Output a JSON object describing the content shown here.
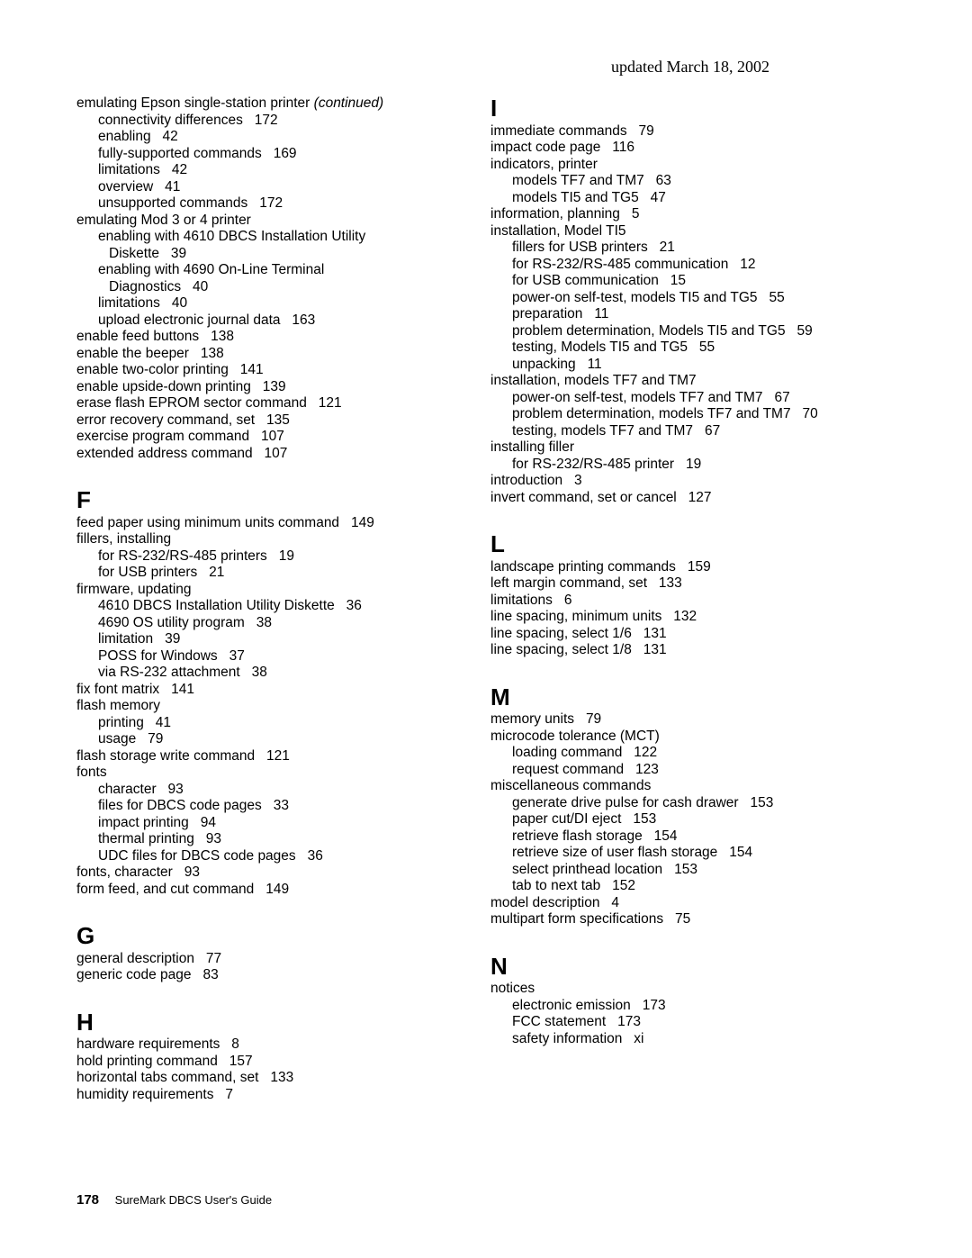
{
  "updated_text": "updated March 18, 2002",
  "footer": {
    "page_number": "178",
    "doc_title": "SureMark DBCS User's Guide"
  },
  "left_column": [
    {
      "type": "entry",
      "level": 0,
      "text": "emulating Epson single-station printer",
      "continued": true
    },
    {
      "type": "entry",
      "level": 1,
      "text": "connectivity differences",
      "page": "172"
    },
    {
      "type": "entry",
      "level": 1,
      "text": "enabling",
      "page": "42"
    },
    {
      "type": "entry",
      "level": 1,
      "text": "fully-supported commands",
      "page": "169"
    },
    {
      "type": "entry",
      "level": 1,
      "text": "limitations",
      "page": "42"
    },
    {
      "type": "entry",
      "level": 1,
      "text": "overview",
      "page": "41"
    },
    {
      "type": "entry",
      "level": 1,
      "text": "unsupported commands",
      "page": "172"
    },
    {
      "type": "entry",
      "level": 0,
      "text": "emulating Mod 3 or 4 printer"
    },
    {
      "type": "entry",
      "level": 1,
      "text": "enabling with 4610 DBCS Installation Utility"
    },
    {
      "type": "entry",
      "level": 2,
      "text": "Diskette",
      "page": "39"
    },
    {
      "type": "entry",
      "level": 1,
      "text": "enabling with 4690 On-Line Terminal"
    },
    {
      "type": "entry",
      "level": 2,
      "text": "Diagnostics",
      "page": "40"
    },
    {
      "type": "entry",
      "level": 1,
      "text": "limitations",
      "page": "40"
    },
    {
      "type": "entry",
      "level": 1,
      "text": "upload electronic journal data",
      "page": "163"
    },
    {
      "type": "entry",
      "level": 0,
      "text": "enable feed buttons",
      "page": "138"
    },
    {
      "type": "entry",
      "level": 0,
      "text": "enable the beeper",
      "page": "138"
    },
    {
      "type": "entry",
      "level": 0,
      "text": "enable two-color printing",
      "page": "141"
    },
    {
      "type": "entry",
      "level": 0,
      "text": "enable upside-down printing",
      "page": "139"
    },
    {
      "type": "entry",
      "level": 0,
      "text": "erase flash EPROM sector command",
      "page": "121"
    },
    {
      "type": "entry",
      "level": 0,
      "text": "error recovery command, set",
      "page": "135"
    },
    {
      "type": "entry",
      "level": 0,
      "text": "exercise program command",
      "page": "107"
    },
    {
      "type": "entry",
      "level": 0,
      "text": "extended address command",
      "page": "107"
    },
    {
      "type": "letter",
      "text": "F"
    },
    {
      "type": "entry",
      "level": 0,
      "text": "feed paper using minimum units command",
      "page": "149"
    },
    {
      "type": "entry",
      "level": 0,
      "text": "fillers, installing"
    },
    {
      "type": "entry",
      "level": 1,
      "text": "for RS-232/RS-485 printers",
      "page": "19"
    },
    {
      "type": "entry",
      "level": 1,
      "text": "for USB printers",
      "page": "21"
    },
    {
      "type": "entry",
      "level": 0,
      "text": "firmware, updating"
    },
    {
      "type": "entry",
      "level": 1,
      "text": "4610 DBCS Installation Utility Diskette",
      "page": "36"
    },
    {
      "type": "entry",
      "level": 1,
      "text": "4690 OS utility program",
      "page": "38"
    },
    {
      "type": "entry",
      "level": 1,
      "text": "limitation",
      "page": "39"
    },
    {
      "type": "entry",
      "level": 1,
      "text": "POSS for Windows",
      "page": "37"
    },
    {
      "type": "entry",
      "level": 1,
      "text": "via RS-232 attachment",
      "page": "38"
    },
    {
      "type": "entry",
      "level": 0,
      "text": "fix font matrix",
      "page": "141"
    },
    {
      "type": "entry",
      "level": 0,
      "text": "flash memory"
    },
    {
      "type": "entry",
      "level": 1,
      "text": "printing",
      "page": "41"
    },
    {
      "type": "entry",
      "level": 1,
      "text": "usage",
      "page": "79"
    },
    {
      "type": "entry",
      "level": 0,
      "text": "flash storage write command",
      "page": "121"
    },
    {
      "type": "entry",
      "level": 0,
      "text": "fonts"
    },
    {
      "type": "entry",
      "level": 1,
      "text": "character",
      "page": "93"
    },
    {
      "type": "entry",
      "level": 1,
      "text": "files for DBCS code pages",
      "page": "33"
    },
    {
      "type": "entry",
      "level": 1,
      "text": "impact printing",
      "page": "94"
    },
    {
      "type": "entry",
      "level": 1,
      "text": "thermal printing",
      "page": "93"
    },
    {
      "type": "entry",
      "level": 1,
      "text": "UDC files for DBCS code pages",
      "page": "36"
    },
    {
      "type": "entry",
      "level": 0,
      "text": "fonts, character",
      "page": "93"
    },
    {
      "type": "entry",
      "level": 0,
      "text": "form feed, and cut command",
      "page": "149"
    },
    {
      "type": "letter",
      "text": "G"
    },
    {
      "type": "entry",
      "level": 0,
      "text": "general description",
      "page": "77"
    },
    {
      "type": "entry",
      "level": 0,
      "text": "generic code page",
      "page": "83"
    },
    {
      "type": "letter",
      "text": "H"
    },
    {
      "type": "entry",
      "level": 0,
      "text": "hardware requirements",
      "page": "8"
    },
    {
      "type": "entry",
      "level": 0,
      "text": "hold printing command",
      "page": "157"
    },
    {
      "type": "entry",
      "level": 0,
      "text": "horizontal tabs command, set",
      "page": "133"
    },
    {
      "type": "entry",
      "level": 0,
      "text": "humidity requirements",
      "page": "7"
    }
  ],
  "right_column": [
    {
      "type": "letter",
      "text": "I"
    },
    {
      "type": "entry",
      "level": 0,
      "text": "immediate commands",
      "page": "79"
    },
    {
      "type": "entry",
      "level": 0,
      "text": "impact code page",
      "page": "116"
    },
    {
      "type": "entry",
      "level": 0,
      "text": "indicators, printer"
    },
    {
      "type": "entry",
      "level": 1,
      "text": "models TF7 and TM7",
      "page": "63"
    },
    {
      "type": "entry",
      "level": 1,
      "text": "models TI5 and TG5",
      "page": "47"
    },
    {
      "type": "entry",
      "level": 0,
      "text": "information, planning",
      "page": "5"
    },
    {
      "type": "entry",
      "level": 0,
      "text": "installation, Model TI5"
    },
    {
      "type": "entry",
      "level": 1,
      "text": "fillers for USB printers",
      "page": "21"
    },
    {
      "type": "entry",
      "level": 1,
      "text": "for RS-232/RS-485 communication",
      "page": "12"
    },
    {
      "type": "entry",
      "level": 1,
      "text": "for USB communication",
      "page": "15"
    },
    {
      "type": "entry",
      "level": 1,
      "text": "power-on self-test, models TI5 and TG5",
      "page": "55"
    },
    {
      "type": "entry",
      "level": 1,
      "text": "preparation",
      "page": "11"
    },
    {
      "type": "entry",
      "level": 1,
      "text": "problem determination, Models TI5 and TG5",
      "page": "59"
    },
    {
      "type": "entry",
      "level": 1,
      "text": "testing, Models TI5 and TG5",
      "page": "55"
    },
    {
      "type": "entry",
      "level": 1,
      "text": "unpacking",
      "page": "11"
    },
    {
      "type": "entry",
      "level": 0,
      "text": "installation, models TF7 and TM7"
    },
    {
      "type": "entry",
      "level": 1,
      "text": "power-on self-test, models TF7 and TM7",
      "page": "67"
    },
    {
      "type": "entry",
      "level": 1,
      "text": "problem determination, models TF7 and TM7",
      "page": "70"
    },
    {
      "type": "entry",
      "level": 1,
      "text": "testing, models TF7 and TM7",
      "page": "67"
    },
    {
      "type": "entry",
      "level": 0,
      "text": "installing filler"
    },
    {
      "type": "entry",
      "level": 1,
      "text": "for RS-232/RS-485 printer",
      "page": "19"
    },
    {
      "type": "entry",
      "level": 0,
      "text": "introduction",
      "page": "3"
    },
    {
      "type": "entry",
      "level": 0,
      "text": "invert command, set or cancel",
      "page": "127"
    },
    {
      "type": "letter",
      "text": "L"
    },
    {
      "type": "entry",
      "level": 0,
      "text": "landscape printing commands",
      "page": "159"
    },
    {
      "type": "entry",
      "level": 0,
      "text": "left margin command, set",
      "page": "133"
    },
    {
      "type": "entry",
      "level": 0,
      "text": "limitations",
      "page": "6"
    },
    {
      "type": "entry",
      "level": 0,
      "text": "line spacing, minimum units",
      "page": "132"
    },
    {
      "type": "entry",
      "level": 0,
      "text": "line spacing, select 1/6",
      "page": "131"
    },
    {
      "type": "entry",
      "level": 0,
      "text": "line spacing, select 1/8",
      "page": "131"
    },
    {
      "type": "letter",
      "text": "M"
    },
    {
      "type": "entry",
      "level": 0,
      "text": "memory units",
      "page": "79"
    },
    {
      "type": "entry",
      "level": 0,
      "text": "microcode tolerance (MCT)"
    },
    {
      "type": "entry",
      "level": 1,
      "text": "loading command",
      "page": "122"
    },
    {
      "type": "entry",
      "level": 1,
      "text": "request command",
      "page": "123"
    },
    {
      "type": "entry",
      "level": 0,
      "text": "miscellaneous commands"
    },
    {
      "type": "entry",
      "level": 1,
      "text": "generate drive pulse for cash drawer",
      "page": "153"
    },
    {
      "type": "entry",
      "level": 1,
      "text": "paper cut/DI eject",
      "page": "153"
    },
    {
      "type": "entry",
      "level": 1,
      "text": "retrieve flash storage",
      "page": "154"
    },
    {
      "type": "entry",
      "level": 1,
      "text": "retrieve size of user flash storage",
      "page": "154"
    },
    {
      "type": "entry",
      "level": 1,
      "text": "select printhead location",
      "page": "153"
    },
    {
      "type": "entry",
      "level": 1,
      "text": "tab to next tab",
      "page": "152"
    },
    {
      "type": "entry",
      "level": 0,
      "text": "model description",
      "page": "4"
    },
    {
      "type": "entry",
      "level": 0,
      "text": "multipart form specifications",
      "page": "75"
    },
    {
      "type": "letter",
      "text": "N"
    },
    {
      "type": "entry",
      "level": 0,
      "text": "notices"
    },
    {
      "type": "entry",
      "level": 1,
      "text": "electronic emission",
      "page": "173"
    },
    {
      "type": "entry",
      "level": 1,
      "text": "FCC statement",
      "page": "173"
    },
    {
      "type": "entry",
      "level": 1,
      "text": "safety information",
      "page": "xi"
    }
  ]
}
